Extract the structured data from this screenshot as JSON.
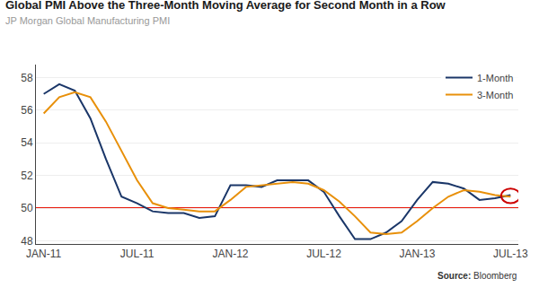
{
  "chart_data": {
    "type": "line",
    "title": "Global PMI Above the Three-Month Moving Average for Second Month in a Row",
    "subtitle": "JP Morgan Global Manufacturing PMI",
    "source": {
      "label": "Source:",
      "text": "Bloomberg"
    },
    "x": [
      0,
      1,
      2,
      3,
      4,
      5,
      6,
      7,
      8,
      9,
      10,
      11,
      12,
      13,
      14,
      15,
      16,
      17,
      18,
      19,
      20,
      21,
      22,
      23,
      24,
      25,
      26,
      27,
      28,
      29,
      30
    ],
    "series": [
      {
        "name": "1-Month",
        "color": "#1a3668",
        "values": [
          57.0,
          57.6,
          57.2,
          55.5,
          53.0,
          50.7,
          50.3,
          49.8,
          49.7,
          49.7,
          49.4,
          49.5,
          51.4,
          51.4,
          51.3,
          51.7,
          51.7,
          51.7,
          51.0,
          49.5,
          48.1,
          48.1,
          48.5,
          49.2,
          50.5,
          51.6,
          51.5,
          51.2,
          50.5,
          50.6,
          50.8
        ]
      },
      {
        "name": "3-Month",
        "color": "#e8900a",
        "values": [
          55.8,
          56.8,
          57.1,
          56.8,
          55.3,
          53.5,
          51.7,
          50.3,
          50.0,
          49.9,
          49.8,
          49.8,
          50.5,
          51.3,
          51.4,
          51.5,
          51.6,
          51.5,
          51.1,
          50.4,
          49.5,
          48.5,
          48.4,
          48.5,
          49.2,
          50.0,
          50.7,
          51.1,
          51.0,
          50.8,
          50.7
        ]
      }
    ],
    "xlim": [
      -0.5,
      30.5
    ],
    "xticks": [
      {
        "value": 0,
        "label": "JAN-11"
      },
      {
        "value": 6,
        "label": "JUL-11"
      },
      {
        "value": 12,
        "label": "JAN-12"
      },
      {
        "value": 18,
        "label": "JUL-12"
      },
      {
        "value": 24,
        "label": "JAN-13"
      },
      {
        "value": 30,
        "label": "JUL-13"
      }
    ],
    "ylim": [
      47.8,
      58.8
    ],
    "yticks": [
      48,
      50,
      52,
      54,
      56,
      58
    ],
    "reference_line": {
      "value": 50,
      "color": "#e8190a"
    },
    "circle": {
      "x": 30,
      "y": 50.75,
      "radius_x": 0.6,
      "radius_y": 0.45,
      "color": "#cc0000"
    },
    "grid": true,
    "legend": "upper right"
  }
}
